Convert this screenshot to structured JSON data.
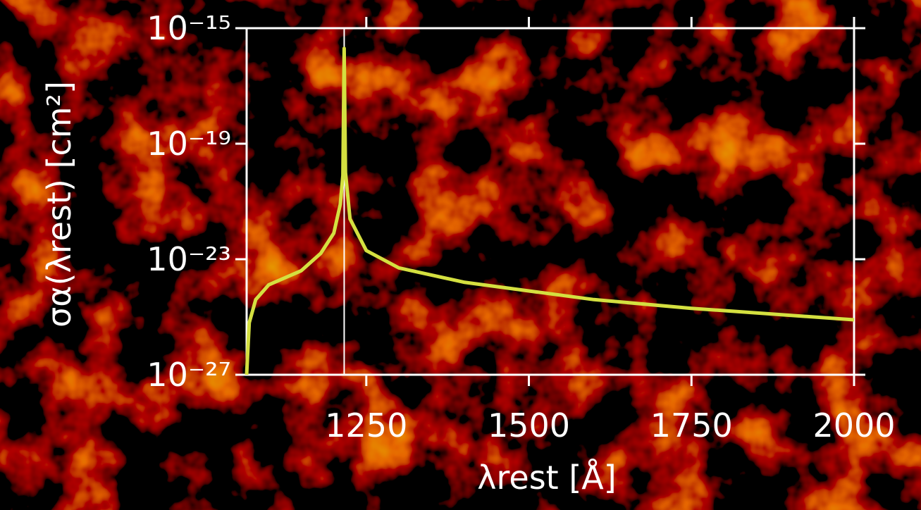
{
  "chart_data": {
    "type": "line",
    "log_y": true,
    "x_label": "λrest [Å]",
    "y_label": "σα(λrest) [cm²]",
    "xlim": [
      1066,
      2000
    ],
    "xticks": [
      1250,
      1500,
      1750,
      2000
    ],
    "ylim": [
      1e-27,
      1e-15
    ],
    "yticks": [
      {
        "value": 1e-27,
        "label": "10⁻²⁷"
      },
      {
        "value": 1e-23,
        "label": "10⁻²³"
      },
      {
        "value": 1e-19,
        "label": "10⁻¹⁹"
      },
      {
        "value": 1e-15,
        "label": "10⁻¹⁵"
      }
    ],
    "vline": 1216,
    "vline_color": "#ffffff",
    "x": [
      1066,
      1070,
      1080,
      1100,
      1150,
      1180,
      1200,
      1210,
      1214,
      1216,
      1218,
      1225,
      1250,
      1300,
      1400,
      1500,
      1600,
      1750,
      2000
    ],
    "series": [
      {
        "color": "#d4e040",
        "values": [
          1e-27,
          6.3e-26,
          4e-25,
          1.3e-24,
          4e-24,
          1.6e-23,
          8e-23,
          8e-22,
          8e-21,
          2e-16,
          1e-20,
          2.5e-22,
          2e-23,
          5e-24,
          1.6e-24,
          8e-25,
          4e-25,
          2e-25,
          8e-26
        ]
      }
    ]
  }
}
